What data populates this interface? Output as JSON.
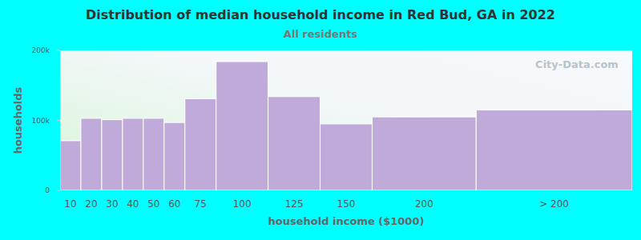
{
  "chart_data": {
    "type": "histogram",
    "title": "Distribution of median household income in Red Bud, GA in 2022",
    "subtitle": "All residents",
    "x_label": "household income ($1000)",
    "y_label": "households",
    "source": "City-Data.com",
    "categories": [
      "10",
      "20",
      "30",
      "40",
      "50",
      "60",
      "75",
      "100",
      "125",
      "150",
      "200",
      "> 200"
    ],
    "bins": [
      0,
      10,
      20,
      30,
      40,
      50,
      60,
      75,
      100,
      125,
      150,
      200,
      275
    ],
    "values": [
      71000,
      103000,
      101000,
      103000,
      103000,
      97000,
      131000,
      184000,
      134000,
      95000,
      105000,
      115000
    ],
    "color": "#bfaad9",
    "xlim": [
      0,
      275
    ],
    "ylim": [
      0,
      200000
    ],
    "yticks": [
      0,
      {
        "value": 100000,
        "label": "100k"
      },
      {
        "value": 200000,
        "label": "200k"
      }
    ]
  }
}
